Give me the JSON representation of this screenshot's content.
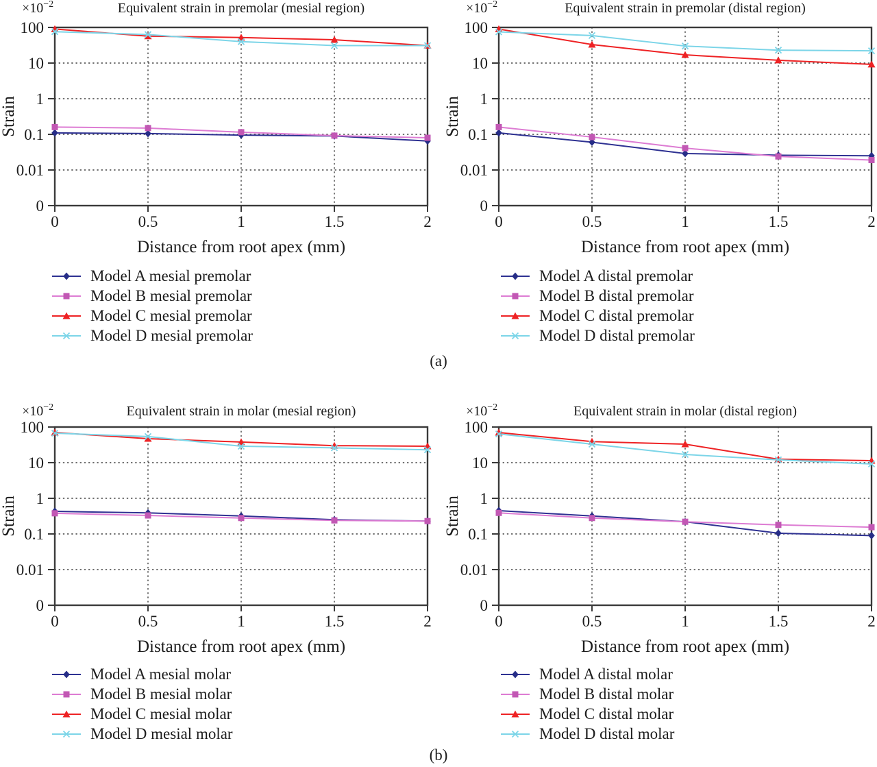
{
  "panel_labels": {
    "a": "(a)",
    "b": "(b)"
  },
  "chart_data": [
    {
      "type": "line",
      "title": "Equivalent strain in premolar (mesial region)",
      "xlabel": "Distance from root apex (mm)",
      "ylabel": "Strain",
      "y_multiplier": {
        "base": "×10",
        "exp": "−2"
      },
      "yscale": "log",
      "ylim": [
        0.01,
        100
      ],
      "ytick_labels": [
        "100",
        "10",
        "1",
        "0.1",
        "0.01",
        "0"
      ],
      "x": [
        0,
        0.5,
        1,
        1.5,
        2
      ],
      "xtick_labels": [
        "0",
        "0.5",
        "1",
        "1.5",
        "2"
      ],
      "grid": "dotted",
      "legend_position": "below-left",
      "series": [
        {
          "name": "Model A mesial premolar",
          "marker": "diamond",
          "line_color": "#2e3192",
          "marker_color": "#262d87",
          "values": [
            0.11,
            0.105,
            0.095,
            0.09,
            0.065
          ]
        },
        {
          "name": "Model B mesial premolar",
          "marker": "square",
          "line_color": "#dd7cd3",
          "marker_color": "#c258b4",
          "values": [
            0.16,
            0.15,
            0.115,
            0.092,
            0.08
          ]
        },
        {
          "name": "Model C mesial premolar",
          "marker": "triangle",
          "line_color": "#ee2224",
          "marker_color": "#ee2224",
          "values": [
            90,
            57,
            52,
            45,
            31
          ]
        },
        {
          "name": "Model D mesial premolar",
          "marker": "x",
          "line_color": "#7cd5e8",
          "marker_color": "#7cd5e8",
          "values": [
            76,
            63,
            40,
            31,
            31
          ]
        }
      ]
    },
    {
      "type": "line",
      "title": "Equivalent strain in premolar (distal region)",
      "xlabel": "Distance from root apex (mm)",
      "ylabel": "Strain",
      "y_multiplier": {
        "base": "×10",
        "exp": "−2"
      },
      "yscale": "log",
      "ylim": [
        0.01,
        100
      ],
      "ytick_labels": [
        "100",
        "10",
        "1",
        "0.1",
        "0.01",
        "0"
      ],
      "x": [
        0,
        0.5,
        1,
        1.5,
        2
      ],
      "xtick_labels": [
        "0",
        "0.5",
        "1",
        "1.5",
        "2"
      ],
      "grid": "dotted",
      "legend_position": "below-left",
      "series": [
        {
          "name": "Model A distal premolar",
          "marker": "diamond",
          "line_color": "#2e3192",
          "marker_color": "#262d87",
          "values": [
            0.11,
            0.06,
            0.029,
            0.026,
            0.025
          ]
        },
        {
          "name": "Model B distal premolar",
          "marker": "square",
          "line_color": "#dd7cd3",
          "marker_color": "#c258b4",
          "values": [
            0.16,
            0.084,
            0.041,
            0.024,
            0.019
          ]
        },
        {
          "name": "Model C distal premolar",
          "marker": "triangle",
          "line_color": "#ee2224",
          "marker_color": "#ee2224",
          "values": [
            90,
            33,
            17,
            12,
            9.2
          ]
        },
        {
          "name": "Model D distal premolar",
          "marker": "x",
          "line_color": "#7cd5e8",
          "marker_color": "#7cd5e8",
          "values": [
            75,
            59,
            30,
            23,
            22
          ]
        }
      ]
    },
    {
      "type": "line",
      "title": "Equivalent strain in molar (mesial region)",
      "xlabel": "Distance from root apex (mm)",
      "ylabel": "Strain",
      "y_multiplier": {
        "base": "×10",
        "exp": "−2"
      },
      "yscale": "log",
      "ylim": [
        0.01,
        100
      ],
      "ytick_labels": [
        "100",
        "10",
        "1",
        "0.1",
        "0.01",
        "0"
      ],
      "x": [
        0,
        0.5,
        1,
        1.5,
        2
      ],
      "xtick_labels": [
        "0",
        "0.5",
        "1",
        "1.5",
        "2"
      ],
      "grid": "dotted",
      "legend_position": "below-left",
      "series": [
        {
          "name": "Model A mesial molar",
          "marker": "diamond",
          "line_color": "#2e3192",
          "marker_color": "#262d87",
          "values": [
            0.43,
            0.39,
            0.32,
            0.25,
            0.23
          ]
        },
        {
          "name": "Model B mesial molar",
          "marker": "square",
          "line_color": "#dd7cd3",
          "marker_color": "#c258b4",
          "values": [
            0.38,
            0.33,
            0.28,
            0.24,
            0.23
          ]
        },
        {
          "name": "Model C mesial molar",
          "marker": "triangle",
          "line_color": "#ee2224",
          "marker_color": "#ee2224",
          "values": [
            70,
            47,
            38,
            30,
            29
          ]
        },
        {
          "name": "Model D mesial molar",
          "marker": "x",
          "line_color": "#7cd5e8",
          "marker_color": "#7cd5e8",
          "values": [
            67,
            54,
            29,
            26,
            23
          ]
        }
      ]
    },
    {
      "type": "line",
      "title": "Equivalent strain in molar (distal region)",
      "xlabel": "Distance from root apex (mm)",
      "ylabel": "Strain",
      "y_multiplier": {
        "base": "×10",
        "exp": "−2"
      },
      "yscale": "log",
      "ylim": [
        0.01,
        100
      ],
      "ytick_labels": [
        "100",
        "10",
        "1",
        "0.1",
        "0.01",
        "0"
      ],
      "x": [
        0,
        0.5,
        1,
        1.5,
        2
      ],
      "xtick_labels": [
        "0",
        "0.5",
        "1",
        "1.5",
        "2"
      ],
      "grid": "dotted",
      "legend_position": "below-left",
      "series": [
        {
          "name": "Model A distal molar",
          "marker": "diamond",
          "line_color": "#2e3192",
          "marker_color": "#262d87",
          "values": [
            0.45,
            0.32,
            0.22,
            0.105,
            0.09
          ]
        },
        {
          "name": "Model B distal molar",
          "marker": "square",
          "line_color": "#dd7cd3",
          "marker_color": "#c258b4",
          "values": [
            0.39,
            0.28,
            0.22,
            0.18,
            0.155
          ]
        },
        {
          "name": "Model C distal molar",
          "marker": "triangle",
          "line_color": "#ee2224",
          "marker_color": "#ee2224",
          "values": [
            70,
            39,
            33,
            12.5,
            11.4
          ]
        },
        {
          "name": "Model D distal molar",
          "marker": "x",
          "line_color": "#7cd5e8",
          "marker_color": "#7cd5e8",
          "values": [
            64,
            33,
            17,
            12,
            9.2
          ]
        }
      ]
    }
  ]
}
